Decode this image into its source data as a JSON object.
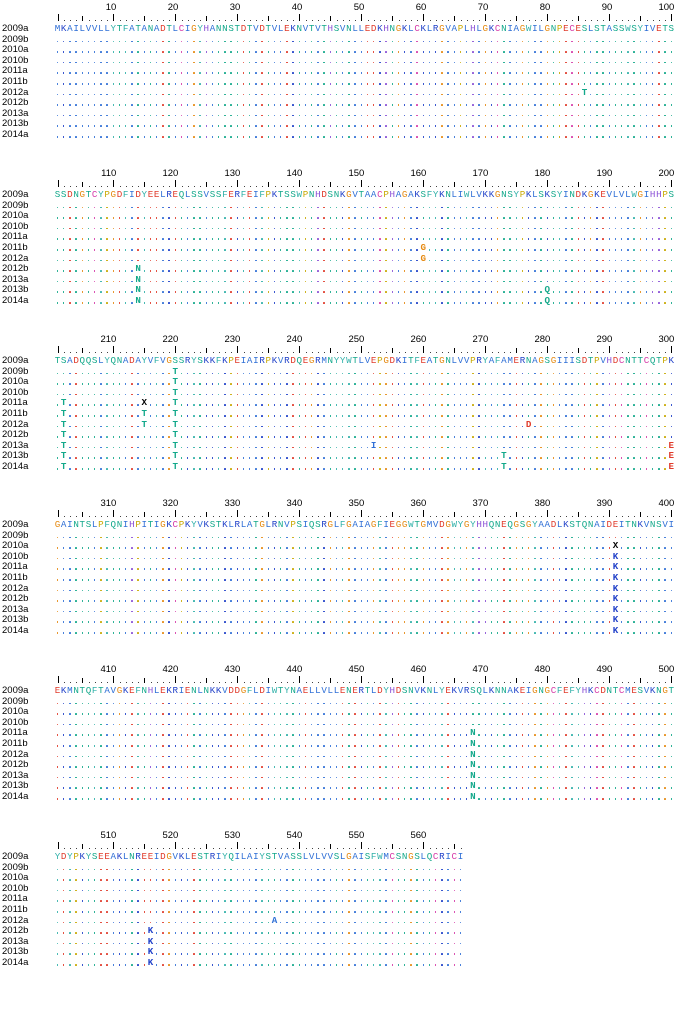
{
  "blocks": [
    {
      "ticks": [
        "10",
        "20",
        "30",
        "40",
        "50",
        "60",
        "70",
        "80",
        "90",
        "100"
      ],
      "ref_name": "2009a",
      "ref_seq": "MKAILVVLLYTFATANADTLCIGYHANNSTDTVDTVLEKNVTVTHSVNLLEDKHNGKLCKLRGVAPLHLGKCNIAGWILGNPECESLSTASSWSYIVETS",
      "rows": [
        {
          "name": "2009b",
          "subs": []
        },
        {
          "name": "2010a",
          "subs": []
        },
        {
          "name": "2010b",
          "subs": []
        },
        {
          "name": "2011a",
          "subs": []
        },
        {
          "name": "2011b",
          "subs": []
        },
        {
          "name": "2012a",
          "subs": [
            [
              86,
              "T"
            ]
          ]
        },
        {
          "name": "2012b",
          "subs": []
        },
        {
          "name": "2013a",
          "subs": []
        },
        {
          "name": "2013b",
          "subs": []
        },
        {
          "name": "2014a",
          "subs": []
        }
      ]
    },
    {
      "ticks": [
        "110",
        "120",
        "130",
        "140",
        "150",
        "160",
        "170",
        "180",
        "190",
        "200"
      ],
      "ref_name": "2009a",
      "ref_seq": "SSDNGTCYPGDFIDYEELREQLSSVSSFERFEIFPKTSSWPNHDSNKGVTAACPHAGAKSFYKNLIWLVKKGNSYPKLSKSYINDKGKEVLVLWGIHHPS",
      "rows": [
        {
          "name": "2009b",
          "subs": []
        },
        {
          "name": "2010a",
          "subs": []
        },
        {
          "name": "2010b",
          "subs": []
        },
        {
          "name": "2011a",
          "subs": []
        },
        {
          "name": "2011b",
          "subs": [
            [
              60,
              "G"
            ]
          ]
        },
        {
          "name": "2012a",
          "subs": [
            [
              60,
              "G"
            ]
          ]
        },
        {
          "name": "2012b",
          "subs": [
            [
              14,
              "N"
            ]
          ]
        },
        {
          "name": "2013a",
          "subs": [
            [
              14,
              "N"
            ]
          ]
        },
        {
          "name": "2013b",
          "subs": [
            [
              14,
              "N"
            ],
            [
              80,
              "Q"
            ]
          ]
        },
        {
          "name": "2014a",
          "subs": [
            [
              14,
              "N"
            ],
            [
              80,
              "Q"
            ]
          ]
        }
      ]
    },
    {
      "ticks": [
        "210",
        "220",
        "230",
        "240",
        "250",
        "260",
        "270",
        "280",
        "290",
        "300"
      ],
      "ref_name": "2009a",
      "ref_seq": "TSADQQSLYQNADAYVFVGSSRYSKKFKPEIAIRPKVRDQEGRMNYYWTLVEPGDKITFEATGNLVVPRYAFAMERNAGSGIIISDTPVHDCNTTCQTPK",
      "rows": [
        {
          "name": "2009b",
          "subs": [
            [
              20,
              "T"
            ]
          ]
        },
        {
          "name": "2010a",
          "subs": [
            [
              20,
              "T"
            ]
          ]
        },
        {
          "name": "2010b",
          "subs": [
            [
              20,
              "T"
            ]
          ]
        },
        {
          "name": "2011a",
          "subs": [
            [
              2,
              "T"
            ],
            [
              15,
              "X"
            ],
            [
              20,
              "T"
            ]
          ]
        },
        {
          "name": "2011b",
          "subs": [
            [
              2,
              "T"
            ],
            [
              15,
              "T"
            ],
            [
              20,
              "T"
            ]
          ]
        },
        {
          "name": "2012a",
          "subs": [
            [
              2,
              "T"
            ],
            [
              15,
              "T"
            ],
            [
              20,
              "T"
            ],
            [
              77,
              "D"
            ]
          ]
        },
        {
          "name": "2012b",
          "subs": [
            [
              2,
              "T"
            ],
            [
              20,
              "T"
            ]
          ]
        },
        {
          "name": "2013a",
          "subs": [
            [
              2,
              "T"
            ],
            [
              20,
              "T"
            ],
            [
              52,
              "I"
            ],
            [
              100,
              "E"
            ]
          ]
        },
        {
          "name": "2013b",
          "subs": [
            [
              2,
              "T"
            ],
            [
              20,
              "T"
            ],
            [
              73,
              "T"
            ],
            [
              100,
              "E"
            ]
          ]
        },
        {
          "name": "2014a",
          "subs": [
            [
              2,
              "T"
            ],
            [
              20,
              "T"
            ],
            [
              73,
              "T"
            ],
            [
              100,
              "E"
            ]
          ]
        }
      ]
    },
    {
      "ticks": [
        "310",
        "320",
        "330",
        "340",
        "350",
        "360",
        "370",
        "380",
        "390",
        "400"
      ],
      "ref_name": "2009a",
      "ref_seq": "GAINTSLPFQNIHPITIGKCPKYVKSTKLRLATGLRNVPSIQSRGLFGAIAGFIEGGWTGMVDGWYGYHHQNEQGSGYAADLKSTQNAIDEITNKVNSVI",
      "rows": [
        {
          "name": "2009b",
          "subs": []
        },
        {
          "name": "2010a",
          "subs": [
            [
              91,
              "X"
            ]
          ]
        },
        {
          "name": "2010b",
          "subs": [
            [
              91,
              "K"
            ]
          ]
        },
        {
          "name": "2011a",
          "subs": [
            [
              91,
              "K"
            ]
          ]
        },
        {
          "name": "2011b",
          "subs": [
            [
              91,
              "K"
            ]
          ]
        },
        {
          "name": "2012a",
          "subs": [
            [
              91,
              "K"
            ]
          ]
        },
        {
          "name": "2012b",
          "subs": [
            [
              91,
              "K"
            ]
          ]
        },
        {
          "name": "2013a",
          "subs": [
            [
              91,
              "K"
            ]
          ]
        },
        {
          "name": "2013b",
          "subs": [
            [
              91,
              "K"
            ]
          ]
        },
        {
          "name": "2014a",
          "subs": [
            [
              91,
              "K"
            ]
          ]
        }
      ]
    },
    {
      "ticks": [
        "410",
        "420",
        "430",
        "440",
        "450",
        "460",
        "470",
        "480",
        "490",
        "500"
      ],
      "ref_name": "2009a",
      "ref_seq": "EKMNTQFTAVGKEFNHLEKRIENLNKKVDDGFLDIWTYNAELLVLLENERTLDYHDSNVKNLYEKVRSQLKNNAKEIGNGCFEFYHKCDNTCMESVKNGT",
      "rows": [
        {
          "name": "2009b",
          "subs": []
        },
        {
          "name": "2010a",
          "subs": []
        },
        {
          "name": "2010b",
          "subs": []
        },
        {
          "name": "2011a",
          "subs": [
            [
              68,
              "N"
            ]
          ]
        },
        {
          "name": "2011b",
          "subs": [
            [
              68,
              "N"
            ]
          ]
        },
        {
          "name": "2012a",
          "subs": [
            [
              68,
              "N"
            ]
          ]
        },
        {
          "name": "2012b",
          "subs": [
            [
              68,
              "N"
            ]
          ]
        },
        {
          "name": "2013a",
          "subs": [
            [
              68,
              "N"
            ]
          ]
        },
        {
          "name": "2013b",
          "subs": [
            [
              68,
              "N"
            ]
          ]
        },
        {
          "name": "2014a",
          "subs": [
            [
              68,
              "N"
            ]
          ]
        }
      ]
    },
    {
      "ticks": [
        "510",
        "520",
        "530",
        "540",
        "550",
        "560"
      ],
      "ref_name": "2009a",
      "ref_seq": "YDYPKYSEEAKLNREEIDGVKLESTRIYQILAIYSTVASSLVLVVSLGAISFWMCSNGSLQCRICI",
      "rows": [
        {
          "name": "2009b",
          "subs": []
        },
        {
          "name": "2010a",
          "subs": []
        },
        {
          "name": "2010b",
          "subs": []
        },
        {
          "name": "2011a",
          "subs": []
        },
        {
          "name": "2011b",
          "subs": []
        },
        {
          "name": "2012a",
          "subs": [
            [
              36,
              "A"
            ]
          ]
        },
        {
          "name": "2012b",
          "subs": [
            [
              16,
              "K"
            ]
          ]
        },
        {
          "name": "2013a",
          "subs": [
            [
              16,
              "K"
            ]
          ]
        },
        {
          "name": "2013b",
          "subs": [
            [
              16,
              "K"
            ]
          ]
        },
        {
          "name": "2014a",
          "subs": [
            [
              16,
              "K"
            ]
          ]
        }
      ]
    }
  ],
  "colors": {
    "hydrophobic": "#2f6fd6",
    "polar": "#12a88a",
    "positive": "#1f3fc8",
    "negative": "#e03a2a",
    "glycine": "#e58a12",
    "proline": "#c8a800",
    "cysteine": "#d63aa8",
    "aromatic": "#2fb0a8",
    "histidine": "#8a4fd6",
    "unknown": "#000000",
    "dot_alt": [
      "#3a7be0",
      "#22b090",
      "#e03a2a",
      "#2fb0a8",
      "#8a4fd6"
    ]
  }
}
